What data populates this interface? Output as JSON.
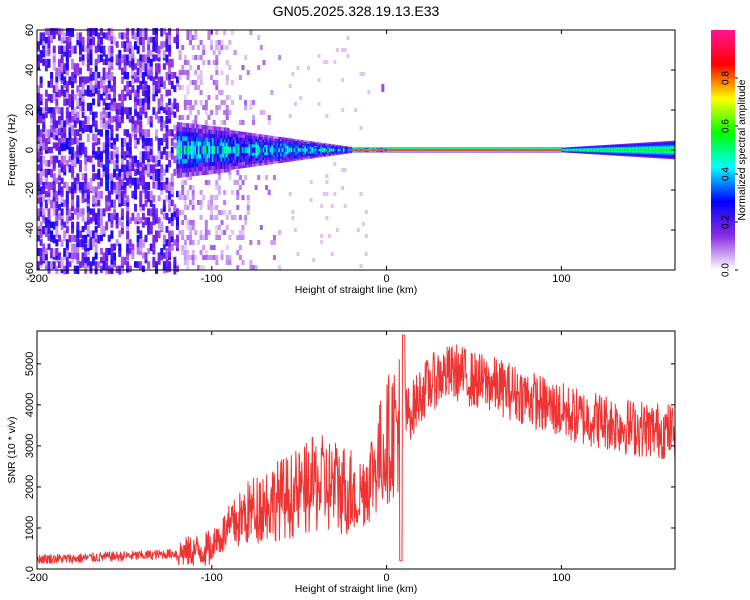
{
  "title": "GN05.2025.328.19.13.E33",
  "chart_data": [
    {
      "type": "heatmap",
      "xlabel": "Height of straight line (km)",
      "ylabel": "Frequency (Hz)",
      "xlim": [
        -200,
        165
      ],
      "ylim": [
        -60,
        60
      ],
      "xticks": [
        -200,
        -100,
        0,
        100
      ],
      "yticks": [
        -60,
        -40,
        -20,
        0,
        20,
        40,
        60
      ],
      "colorbar": {
        "label": "Normalized spectral amplitude",
        "range": [
          0,
          1
        ],
        "ticks": [
          "0.0",
          "0.2",
          "0.4",
          "0.6",
          "0.8"
        ],
        "colors": [
          "#ffffff",
          "#8a2be2",
          "#0000ff",
          "#00ffff",
          "#00ff00",
          "#ffff00",
          "#ff0000",
          "#ff1493"
        ]
      },
      "features": [
        {
          "x_range": [
            -200,
            -120
          ],
          "freq_range": [
            -60,
            60
          ],
          "amplitude": 0.1,
          "description_level": "broadband noise"
        },
        {
          "x_range": [
            -120,
            -20
          ],
          "freq_range": [
            -10,
            10
          ],
          "amplitude": 0.45
        },
        {
          "x_range": [
            -20,
            100
          ],
          "freq_range": [
            -1,
            1
          ],
          "amplitude": 0.95
        },
        {
          "x_range": [
            100,
            165
          ],
          "freq_range": [
            -5,
            5
          ],
          "amplitude": 0.55
        }
      ]
    },
    {
      "type": "line",
      "xlabel": "Height of straight line (km)",
      "ylabel": "SNR (10 * v/v)",
      "xlim": [
        -200,
        165
      ],
      "ylim": [
        0,
        5800
      ],
      "xticks": [
        -200,
        -100,
        0,
        100
      ],
      "yticks": [
        0,
        1000,
        2000,
        3000,
        4000,
        5000
      ],
      "series": [
        {
          "name": "SNR",
          "color": "#ee3333",
          "x": [
            -200,
            -180,
            -160,
            -140,
            -120,
            -100,
            -90,
            -80,
            -70,
            -60,
            -50,
            -40,
            -30,
            -20,
            -10,
            0,
            5,
            10,
            15,
            20,
            30,
            40,
            50,
            60,
            70,
            80,
            90,
            100,
            110,
            120,
            130,
            140,
            150,
            165
          ],
          "values": [
            250,
            250,
            300,
            330,
            380,
            500,
            800,
            1100,
            1300,
            1400,
            1500,
            1700,
            1650,
            1550,
            2200,
            3100,
            3500,
            3700,
            3900,
            4300,
            4700,
            4800,
            4600,
            4500,
            4350,
            4200,
            4000,
            3850,
            3700,
            3650,
            3550,
            3450,
            3400,
            3350
          ]
        }
      ]
    }
  ]
}
